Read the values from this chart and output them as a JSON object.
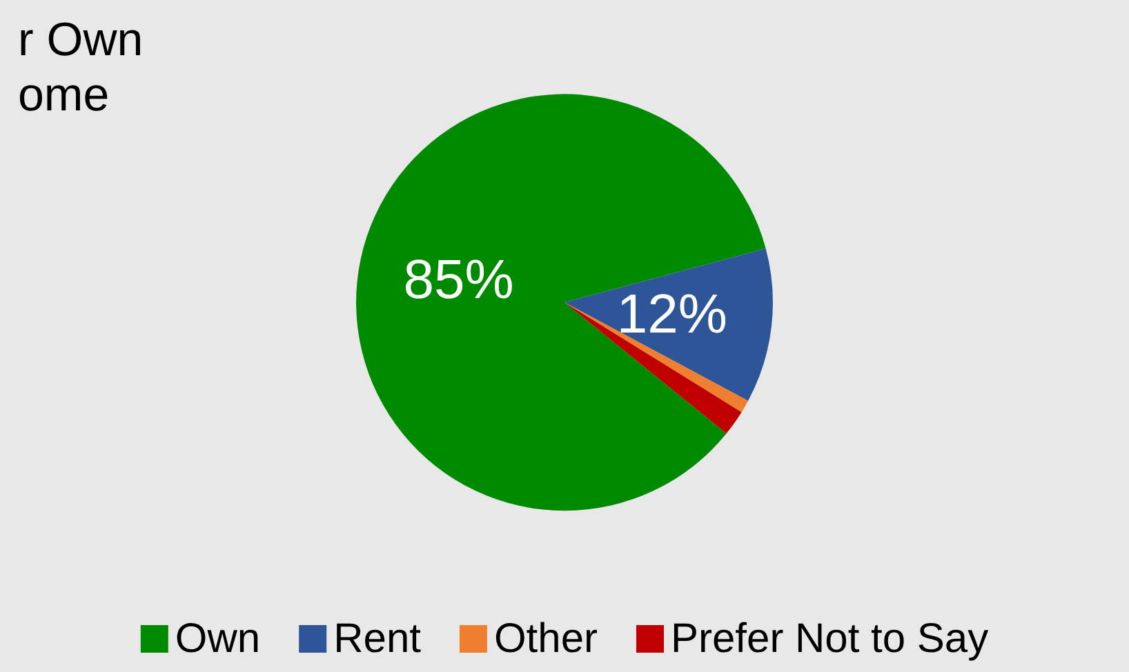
{
  "chart_data": {
    "type": "pie",
    "title": "r Own\nome",
    "categories": [
      "Own",
      "Rent",
      "Other",
      "Prefer Not to Say"
    ],
    "values": [
      85,
      12,
      1,
      2
    ],
    "colors": [
      "#008a00",
      "#2e5597",
      "#f08030",
      "#c00000"
    ],
    "value_labels": [
      "85%",
      "12%",
      null,
      null
    ],
    "legend": "bottom"
  }
}
